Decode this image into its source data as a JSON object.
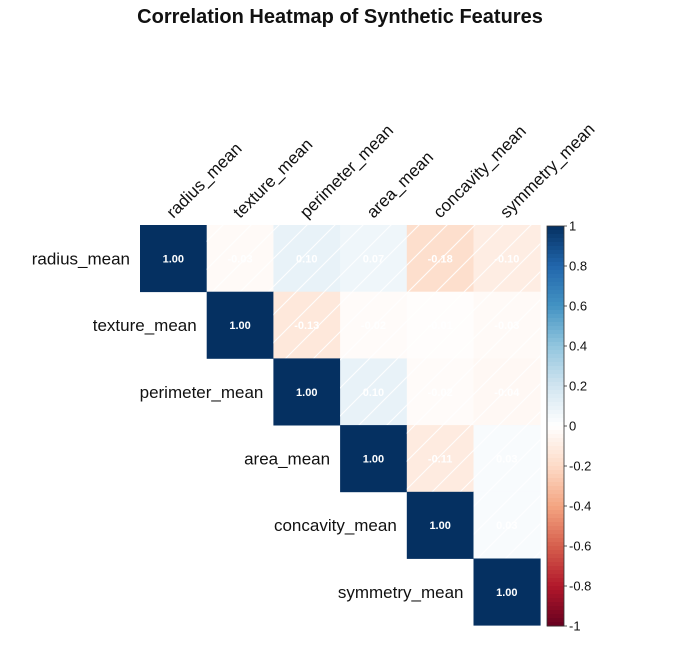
{
  "chart_data": {
    "type": "heatmap",
    "title": "Correlation Heatmap of Synthetic Features",
    "variables": [
      "radius_mean",
      "texture_mean",
      "perimeter_mean",
      "area_mean",
      "concavity_mean",
      "symmetry_mean"
    ],
    "matrix": [
      [
        1.0,
        -0.03,
        0.1,
        0.07,
        -0.18,
        -0.1
      ],
      [
        -0.03,
        1.0,
        -0.13,
        -0.02,
        -0.01,
        -0.03
      ],
      [
        0.1,
        -0.13,
        1.0,
        0.1,
        -0.02,
        -0.04
      ],
      [
        0.07,
        -0.02,
        0.1,
        1.0,
        -0.11,
        0.03
      ],
      [
        -0.18,
        -0.01,
        -0.02,
        -0.11,
        1.0,
        0.03
      ],
      [
        -0.1,
        -0.03,
        -0.04,
        0.03,
        0.03,
        1.0
      ]
    ],
    "display": "upper",
    "diagonal_labels": [
      "1.00",
      "1.00",
      "1.00",
      "1.00",
      "1.00",
      "1.00"
    ],
    "legend": {
      "position": "right",
      "range": [
        -1,
        1
      ],
      "ticks": [
        "1",
        "0.8",
        "0.6",
        "0.4",
        "0.2",
        "0",
        "-0.2",
        "-0.4",
        "-0.6",
        "-0.8",
        "-1"
      ]
    },
    "colors": {
      "negative_end": "#67001f",
      "positive_end": "#053061",
      "center": "#ffffff"
    }
  }
}
